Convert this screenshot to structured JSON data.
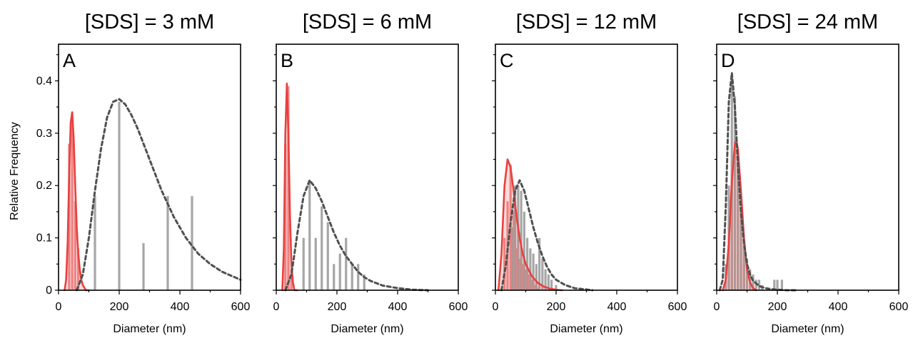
{
  "figure": {
    "ylabel": "Relative Frequency",
    "colors": {
      "red_fit": "#e8403f",
      "red_bar": "#ef9090",
      "gray_fit": "#505050",
      "gray_bar": "#a6a6a6"
    }
  },
  "chart_data": [
    {
      "type": "bar",
      "title": "[SDS] = 3 mM",
      "panel_label": "A",
      "xlabel": "Diameter (nm)",
      "xlim": [
        0,
        600
      ],
      "ylim": [
        0,
        0.47
      ],
      "xticks": [
        0,
        200,
        400,
        600
      ],
      "yticks": [
        0,
        0.1,
        0.2,
        0.3,
        0.4
      ],
      "ytick_labels": [
        "0",
        "0.1",
        "0.2",
        "0.3",
        "0.4"
      ],
      "y_axis_labels_shown": true,
      "series": [
        {
          "kind": "histogram",
          "color": "#ef9090",
          "x": [
            35,
            45,
            55,
            65
          ],
          "values": [
            0.28,
            0.34,
            0.17,
            0.08
          ]
        },
        {
          "kind": "histogram",
          "color": "#a6a6a6",
          "x": [
            120,
            200,
            280,
            360,
            440
          ],
          "values": [
            0.18,
            0.36,
            0.09,
            0.18,
            0.18
          ]
        },
        {
          "kind": "fit",
          "style": "solid",
          "color": "#e8403f",
          "x": [
            20,
            25,
            30,
            35,
            40,
            45,
            50,
            55,
            60,
            65,
            70,
            75,
            80,
            90,
            100
          ],
          "values": [
            0.0,
            0.02,
            0.09,
            0.22,
            0.32,
            0.34,
            0.29,
            0.2,
            0.12,
            0.07,
            0.04,
            0.02,
            0.01,
            0.0,
            0.0
          ]
        },
        {
          "kind": "fit",
          "style": "dashed",
          "color": "#505050",
          "x": [
            60,
            80,
            100,
            120,
            140,
            160,
            180,
            200,
            220,
            240,
            260,
            280,
            300,
            340,
            380,
            420,
            460,
            500,
            540,
            580,
            600
          ],
          "values": [
            0.0,
            0.03,
            0.1,
            0.19,
            0.27,
            0.33,
            0.36,
            0.365,
            0.355,
            0.335,
            0.31,
            0.28,
            0.25,
            0.19,
            0.14,
            0.1,
            0.07,
            0.05,
            0.035,
            0.025,
            0.02
          ]
        }
      ]
    },
    {
      "type": "bar",
      "title": "[SDS] = 6 mM",
      "panel_label": "B",
      "xlabel": "Diameter (nm)",
      "xlim": [
        0,
        600
      ],
      "ylim": [
        0,
        0.47
      ],
      "xticks": [
        0,
        200,
        400,
        600
      ],
      "yticks": [
        0,
        0.1,
        0.2,
        0.3,
        0.4
      ],
      "ytick_labels": [],
      "y_axis_labels_shown": false,
      "series": [
        {
          "kind": "histogram",
          "color": "#ef9090",
          "x": [
            30,
            40,
            50
          ],
          "values": [
            0.28,
            0.39,
            0.04
          ]
        },
        {
          "kind": "histogram",
          "color": "#a6a6a6",
          "x": [
            90,
            110,
            130,
            150,
            170,
            190,
            210,
            230,
            250,
            270,
            290
          ],
          "values": [
            0.1,
            0.21,
            0.1,
            0.16,
            0.13,
            0.05,
            0.07,
            0.1,
            0.05,
            0.05,
            0.03
          ]
        },
        {
          "kind": "fit",
          "style": "solid",
          "color": "#e8403f",
          "x": [
            20,
            25,
            30,
            35,
            40,
            45,
            50,
            55,
            60,
            70
          ],
          "values": [
            0.0,
            0.08,
            0.3,
            0.395,
            0.3,
            0.15,
            0.05,
            0.015,
            0.0,
            0.0
          ]
        },
        {
          "kind": "fit",
          "style": "dashed",
          "color": "#505050",
          "x": [
            30,
            50,
            70,
            90,
            110,
            130,
            150,
            170,
            190,
            210,
            230,
            250,
            270,
            290,
            310,
            350,
            400,
            450,
            500
          ],
          "values": [
            0.0,
            0.03,
            0.11,
            0.18,
            0.21,
            0.195,
            0.17,
            0.14,
            0.11,
            0.085,
            0.065,
            0.05,
            0.035,
            0.025,
            0.018,
            0.009,
            0.004,
            0.001,
            0.0
          ]
        }
      ]
    },
    {
      "type": "bar",
      "title": "[SDS] = 12 mM",
      "panel_label": "C",
      "xlabel": "Diameter (nm)",
      "xlim": [
        0,
        600
      ],
      "ylim": [
        0,
        0.47
      ],
      "xticks": [
        0,
        200,
        400,
        600
      ],
      "yticks": [
        0,
        0.1,
        0.2,
        0.3,
        0.4
      ],
      "ytick_labels": [],
      "y_axis_labels_shown": false,
      "series": [
        {
          "kind": "histogram",
          "color": "#ef9090",
          "x": [
            30,
            40,
            50,
            60,
            70,
            80,
            90,
            100,
            110,
            120,
            130,
            140
          ],
          "values": [
            0.1,
            0.17,
            0.24,
            0.15,
            0.08,
            0.06,
            0.05,
            0.04,
            0.03,
            0.02,
            0.01,
            0.005
          ]
        },
        {
          "kind": "histogram",
          "color": "#a6a6a6",
          "x": [
            55,
            65,
            75,
            85,
            95,
            105,
            115,
            125,
            135,
            145,
            155,
            165,
            175,
            185,
            200
          ],
          "values": [
            0.12,
            0.2,
            0.2,
            0.19,
            0.15,
            0.1,
            0.08,
            0.07,
            0.05,
            0.1,
            0.06,
            0.04,
            0.03,
            0.02,
            0.01
          ]
        },
        {
          "kind": "fit",
          "style": "solid",
          "color": "#e8403f",
          "x": [
            10,
            20,
            30,
            40,
            50,
            60,
            70,
            80,
            90,
            100,
            120,
            140,
            160,
            180,
            200,
            220
          ],
          "values": [
            0.0,
            0.07,
            0.2,
            0.25,
            0.235,
            0.19,
            0.14,
            0.1,
            0.07,
            0.05,
            0.027,
            0.014,
            0.007,
            0.003,
            0.001,
            0.0
          ]
        },
        {
          "kind": "fit",
          "style": "dashed",
          "color": "#505050",
          "x": [
            20,
            35,
            50,
            65,
            80,
            95,
            110,
            125,
            140,
            155,
            170,
            185,
            200,
            230,
            260,
            290,
            320
          ],
          "values": [
            0.0,
            0.05,
            0.13,
            0.19,
            0.21,
            0.19,
            0.155,
            0.12,
            0.09,
            0.065,
            0.045,
            0.03,
            0.02,
            0.01,
            0.004,
            0.002,
            0.0
          ]
        }
      ]
    },
    {
      "type": "bar",
      "title": "[SDS] = 24 mM",
      "panel_label": "D",
      "xlabel": "Diameter (nm)",
      "xlim": [
        0,
        600
      ],
      "ylim": [
        0,
        0.47
      ],
      "xticks": [
        0,
        200,
        400,
        600
      ],
      "yticks": [
        0,
        0.1,
        0.2,
        0.3,
        0.4
      ],
      "ytick_labels": [],
      "y_axis_labels_shown": false,
      "series": [
        {
          "kind": "histogram",
          "color": "#ef9090",
          "x": [
            40,
            50,
            60,
            70,
            80,
            90
          ],
          "values": [
            0.1,
            0.25,
            0.29,
            0.27,
            0.15,
            0.05
          ]
        },
        {
          "kind": "histogram",
          "color": "#a6a6a6",
          "x": [
            30,
            40,
            50,
            60,
            70,
            80,
            90,
            100,
            110,
            120,
            130,
            140,
            150,
            190,
            200,
            215
          ],
          "values": [
            0.05,
            0.2,
            0.41,
            0.37,
            0.25,
            0.15,
            0.09,
            0.06,
            0.04,
            0.03,
            0.02,
            0.02,
            0.01,
            0.02,
            0.02,
            0.02
          ]
        },
        {
          "kind": "fit",
          "style": "solid",
          "color": "#e8403f",
          "x": [
            20,
            30,
            40,
            50,
            60,
            65,
            70,
            80,
            90,
            100,
            110,
            120,
            130
          ],
          "values": [
            0.0,
            0.02,
            0.09,
            0.21,
            0.28,
            0.285,
            0.27,
            0.19,
            0.1,
            0.04,
            0.015,
            0.004,
            0.0
          ]
        },
        {
          "kind": "fit",
          "style": "dashed",
          "color": "#505050",
          "x": [
            10,
            20,
            30,
            40,
            50,
            60,
            70,
            80,
            90,
            100,
            110,
            120,
            140,
            160,
            180,
            200,
            230,
            260
          ],
          "values": [
            0.0,
            0.02,
            0.16,
            0.36,
            0.415,
            0.35,
            0.24,
            0.15,
            0.09,
            0.05,
            0.03,
            0.018,
            0.008,
            0.004,
            0.002,
            0.001,
            0.0,
            0.0
          ]
        }
      ]
    }
  ]
}
